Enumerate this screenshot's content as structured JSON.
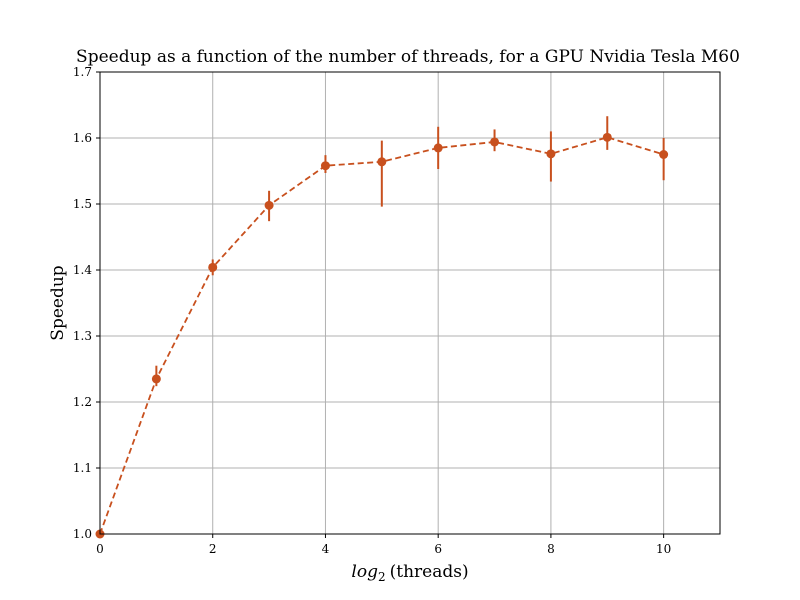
{
  "chart_data": {
    "type": "line",
    "title": "Speedup as a function of the number of threads, for a GPU Nvidia Tesla M60",
    "xlabel": {
      "prefix": "log",
      "subscript": "2",
      "suffix": "(threads)"
    },
    "ylabel": "Speedup",
    "xlim": [
      0,
      11
    ],
    "ylim": [
      1.0,
      1.7
    ],
    "xticks": [
      0,
      2,
      4,
      6,
      8,
      10
    ],
    "yticks": [
      1.0,
      1.1,
      1.2,
      1.3,
      1.4,
      1.5,
      1.6,
      1.7
    ],
    "xtick_labels": [
      "0",
      "2",
      "4",
      "6",
      "8",
      "10"
    ],
    "ytick_labels": [
      "1.0",
      "1.1",
      "1.2",
      "1.3",
      "1.4",
      "1.5",
      "1.6",
      "1.7"
    ],
    "grid": true,
    "line_style": "dashed",
    "marker": "circle",
    "color": "#c8501e",
    "series": [
      {
        "x": [
          0,
          1,
          2,
          3,
          4,
          5,
          6,
          7,
          8,
          9,
          10
        ],
        "y": [
          1.0,
          1.235,
          1.404,
          1.498,
          1.558,
          1.564,
          1.585,
          1.594,
          1.576,
          1.601,
          1.575
        ],
        "y_err_low": [
          1.0,
          1.224,
          1.392,
          1.474,
          1.547,
          1.496,
          1.553,
          1.58,
          1.534,
          1.582,
          1.536
        ],
        "y_err_high": [
          1.0,
          1.255,
          1.416,
          1.52,
          1.574,
          1.596,
          1.617,
          1.613,
          1.61,
          1.633,
          1.6
        ]
      }
    ]
  }
}
